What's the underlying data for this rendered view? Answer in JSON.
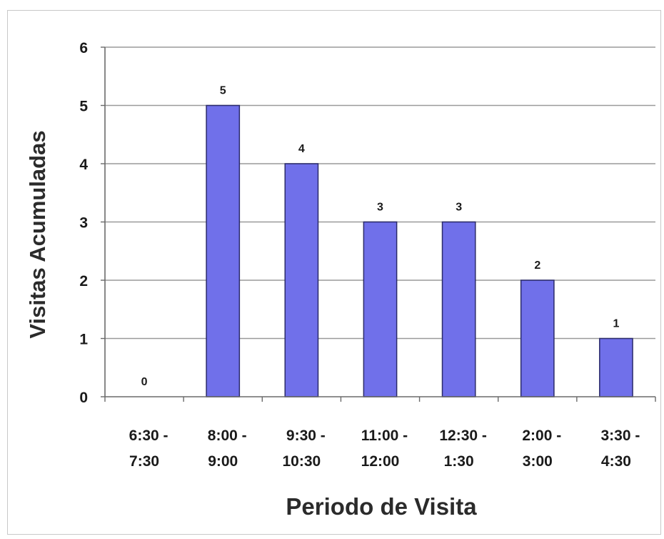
{
  "chart_data": {
    "type": "bar",
    "title": "",
    "xlabel": "Periodo de Visita",
    "ylabel": "Visitas Acumuladas",
    "categories": [
      [
        "6:30 -",
        "7:30"
      ],
      [
        "8:00 -",
        "9:00"
      ],
      [
        "9:30 -",
        "10:30"
      ],
      [
        "11:00 -",
        "12:00"
      ],
      [
        "12:30 -",
        "1:30"
      ],
      [
        "2:00 -",
        "3:00"
      ],
      [
        "3:30 -",
        "4:30"
      ]
    ],
    "values": [
      0,
      5,
      4,
      3,
      3,
      2,
      1
    ],
    "ylim": [
      0,
      6
    ],
    "yticks": [
      0,
      1,
      2,
      3,
      4,
      5,
      6
    ],
    "grid": true,
    "legend": "none",
    "colors": {
      "bar": "#7070ea",
      "bar_edge": "#2a2a6a",
      "grid": "#9a9a9a"
    }
  }
}
